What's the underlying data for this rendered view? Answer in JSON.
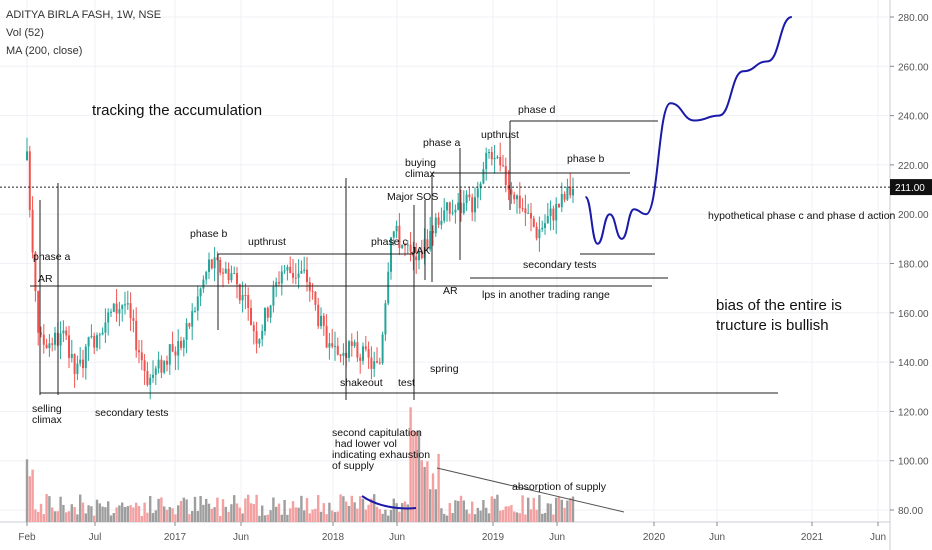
{
  "header": {
    "symbol": "ADITYA BIRLA FASH, 1W, NSE",
    "volume_indicator": "Vol (52)",
    "ma_indicator": "MA (200, close)"
  },
  "price_scale": {
    "ticks": [
      "280.00",
      "260.00",
      "240.00",
      "220.00",
      "200.00",
      "180.00",
      "160.00",
      "140.00",
      "120.00",
      "100.00",
      "80.00"
    ],
    "tick_values": [
      280,
      260,
      240,
      220,
      200,
      180,
      160,
      140,
      120,
      100,
      80
    ],
    "current_price_label": "211.00",
    "current_price": 211
  },
  "time_scale": {
    "labels": [
      "Feb",
      "Jul",
      "2017",
      "Jun",
      "2018",
      "Jun",
      "2019",
      "Jun",
      "2020",
      "Jun",
      "2021",
      "Jun"
    ]
  },
  "colors": {
    "up_candle": "#26a69a",
    "down_candle": "#ef5350",
    "volume_up": "#9e9e9e",
    "volume_down": "#f4a0a0",
    "projection": "#1a1aa8",
    "annotation_line": "#222222",
    "current_price_line": "#222222"
  },
  "annotations": {
    "tracking": "tracking the accumulation",
    "phase_a_left": "phase a",
    "ar_left": "AR",
    "selling_climax": "selling\nclimax",
    "secondary_tests_left": "secondary tests",
    "phase_b_left": "phase b",
    "upthrust_left": "upthrust",
    "phase_c": "phase c",
    "shakeout": "shakeout",
    "test": "test",
    "spring": "spring",
    "second_capitulation": "second capitulation\n had lower vol\nindicating exhaustion\nof supply",
    "phase_a_right": "phase a",
    "buying_climax": "buying\nclimax",
    "major_sos": "Major SOS",
    "jak": "JAK",
    "ar_right": "AR",
    "lps": "lps in another trading range",
    "upthrust_right": "upthrust",
    "phase_d": "phase d",
    "phase_b_right": "phase b",
    "secondary_tests_right": "secondary tests",
    "hypothetical": "hypothetical phase c and phase d action",
    "bias_line1": "bias of the entire is",
    "bias_line2": "tructure is bullish",
    "absorption": "absorption of supply"
  },
  "chart_data": {
    "type": "candlestick",
    "title": "ADITYA BIRLA FASH, 1W, NSE",
    "x_range": [
      "2016-02",
      "2021-07"
    ],
    "price_range": [
      75,
      285
    ],
    "horizontal_levels": [
      {
        "name": "trading range resistance",
        "value": 184
      },
      {
        "name": "trading range support",
        "value": 128
      },
      {
        "name": "AR level",
        "value": 171
      },
      {
        "name": "upper range top",
        "value": 237
      },
      {
        "name": "upper range resistance",
        "value": 216
      },
      {
        "name": "upper range support",
        "value": 184
      },
      {
        "name": "lps level",
        "value": 174
      }
    ],
    "price_path_2016_2019": [
      {
        "date": "2016-02",
        "price": 222
      },
      {
        "date": "2016-03",
        "price": 148
      },
      {
        "date": "2016-05",
        "price": 150
      },
      {
        "date": "2016-06",
        "price": 135
      },
      {
        "date": "2016-08",
        "price": 155
      },
      {
        "date": "2016-10",
        "price": 165
      },
      {
        "date": "2016-12",
        "price": 133
      },
      {
        "date": "2017-03",
        "price": 150
      },
      {
        "date": "2017-05",
        "price": 180
      },
      {
        "date": "2017-07",
        "price": 176
      },
      {
        "date": "2017-09",
        "price": 150
      },
      {
        "date": "2017-11",
        "price": 178
      },
      {
        "date": "2018-01",
        "price": 175
      },
      {
        "date": "2018-03",
        "price": 142
      },
      {
        "date": "2018-05",
        "price": 145
      },
      {
        "date": "2018-07",
        "price": 137
      },
      {
        "date": "2018-08",
        "price": 195
      },
      {
        "date": "2018-10",
        "price": 180
      },
      {
        "date": "2018-12",
        "price": 200
      },
      {
        "date": "2019-03",
        "price": 205
      },
      {
        "date": "2019-04",
        "price": 225
      },
      {
        "date": "2019-06",
        "price": 210
      },
      {
        "date": "2019-08",
        "price": 193
      },
      {
        "date": "2019-10",
        "price": 205
      },
      {
        "date": "2019-11",
        "price": 211
      }
    ],
    "projection_path": [
      {
        "date": "2019-12",
        "price": 207
      },
      {
        "date": "2020-01",
        "price": 188
      },
      {
        "date": "2020-02",
        "price": 200
      },
      {
        "date": "2020-03",
        "price": 190
      },
      {
        "date": "2020-04",
        "price": 202
      },
      {
        "date": "2020-05",
        "price": 200
      },
      {
        "date": "2020-07",
        "price": 245
      },
      {
        "date": "2020-09",
        "price": 238
      },
      {
        "date": "2020-11",
        "price": 240
      },
      {
        "date": "2021-01",
        "price": 258
      },
      {
        "date": "2021-03",
        "price": 262
      },
      {
        "date": "2021-05",
        "price": 280
      }
    ]
  }
}
